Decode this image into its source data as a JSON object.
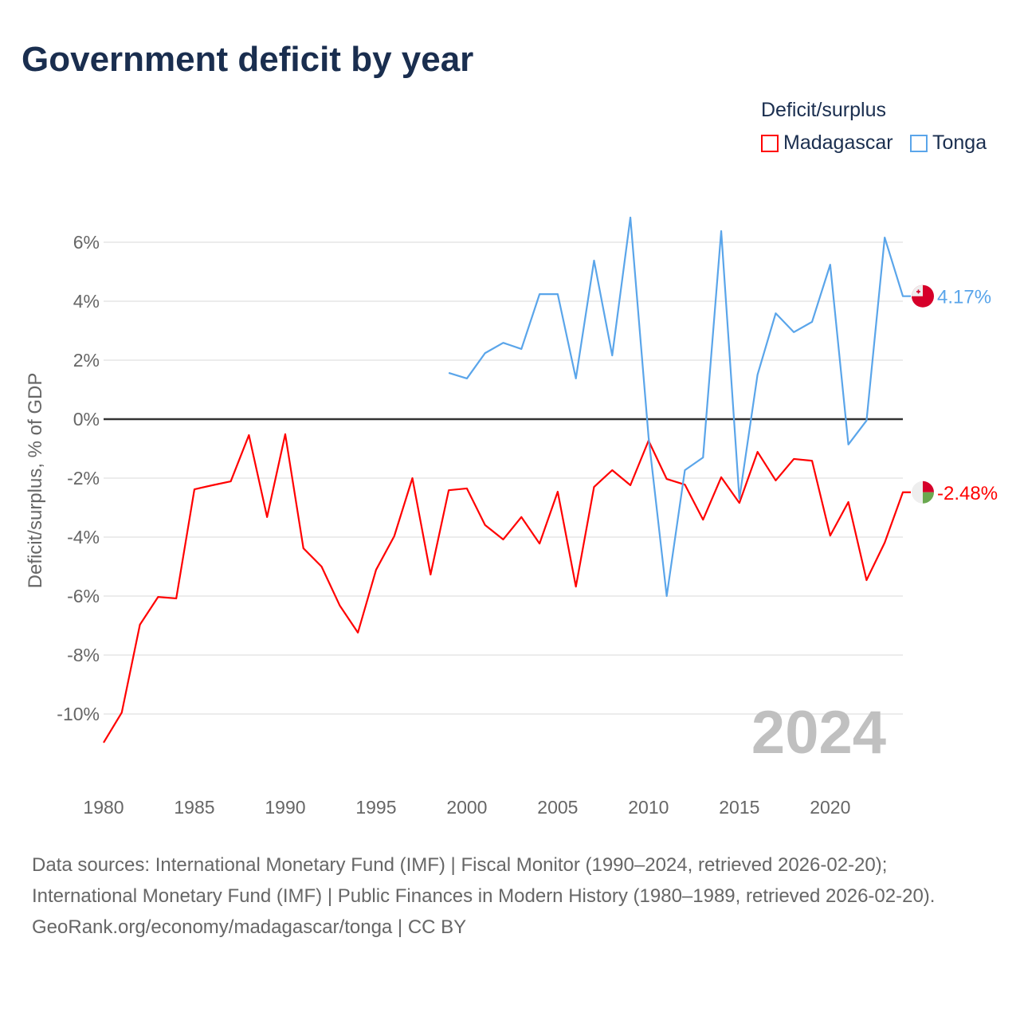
{
  "title": "Government deficit by year",
  "legend": {
    "title": "Deficit/surplus",
    "items": [
      {
        "label": "Madagascar",
        "color": "#ff0000"
      },
      {
        "label": "Tonga",
        "color": "#5aa5ea"
      }
    ]
  },
  "year_label": "2024",
  "sources": {
    "line1": "Data sources: International Monetary Fund (IMF) | Fiscal Monitor (1990–2024, retrieved 2026-02-20); International Monetary Fund (IMF) | Public Finances in Modern History (1980–1989, retrieved 2026-02-20).",
    "line2": "GeoRank.org/economy/madagascar/tonga | CC BY"
  },
  "chart_data": {
    "type": "line",
    "title": "Government deficit by year",
    "xlabel": "",
    "ylabel": "Deficit/surplus, % of GDP",
    "xlim": [
      1980,
      2024
    ],
    "ylim": [
      -12,
      7.5
    ],
    "xticks": [
      1980,
      1985,
      1990,
      1995,
      2000,
      2005,
      2010,
      2015,
      2020
    ],
    "yticks": [
      6,
      4,
      2,
      0,
      -2,
      -4,
      -6,
      -8,
      -10
    ],
    "ytick_labels": [
      "6%",
      "4%",
      "2%",
      "0%",
      "-2%",
      "-4%",
      "-6%",
      "-8%",
      "-10%"
    ],
    "grid": true,
    "legend_position": "top-right",
    "series": [
      {
        "name": "Madagascar",
        "color": "#ff0000",
        "end_label": "-2.48%",
        "x": [
          1980,
          1981,
          1982,
          1983,
          1984,
          1985,
          1986,
          1987,
          1988,
          1989,
          1990,
          1991,
          1992,
          1993,
          1994,
          1995,
          1996,
          1997,
          1998,
          1999,
          2000,
          2001,
          2002,
          2003,
          2004,
          2005,
          2006,
          2007,
          2008,
          2009,
          2010,
          2011,
          2012,
          2013,
          2014,
          2015,
          2016,
          2017,
          2018,
          2019,
          2020,
          2021,
          2022,
          2023,
          2024
        ],
        "values": [
          -10.97,
          -9.95,
          -6.97,
          -6.03,
          -6.08,
          -2.38,
          -2.24,
          -2.11,
          -0.54,
          -3.32,
          -0.51,
          -4.38,
          -5.0,
          -6.32,
          -7.24,
          -5.11,
          -3.97,
          -2.0,
          -5.27,
          -2.41,
          -2.35,
          -3.59,
          -4.08,
          -3.32,
          -4.22,
          -2.46,
          -5.68,
          -2.3,
          -1.73,
          -2.24,
          -0.73,
          -2.03,
          -2.22,
          -3.41,
          -1.97,
          -2.84,
          -1.11,
          -2.08,
          -1.35,
          -1.41,
          -3.95,
          -2.81,
          -5.46,
          -4.19,
          -2.48
        ]
      },
      {
        "name": "Tonga",
        "color": "#5aa5ea",
        "end_label": "4.17%",
        "x": [
          1999,
          2000,
          2001,
          2002,
          2003,
          2004,
          2005,
          2006,
          2007,
          2008,
          2009,
          2010,
          2011,
          2012,
          2013,
          2014,
          2015,
          2016,
          2017,
          2018,
          2019,
          2020,
          2021,
          2022,
          2023,
          2024
        ],
        "values": [
          1.57,
          1.38,
          2.24,
          2.59,
          2.38,
          4.24,
          4.24,
          1.38,
          5.38,
          2.16,
          6.84,
          -0.6,
          -6.0,
          -1.73,
          -1.3,
          6.38,
          -2.7,
          1.51,
          3.59,
          2.95,
          3.3,
          5.24,
          -0.86,
          -0.05,
          6.16,
          4.17
        ]
      }
    ]
  }
}
